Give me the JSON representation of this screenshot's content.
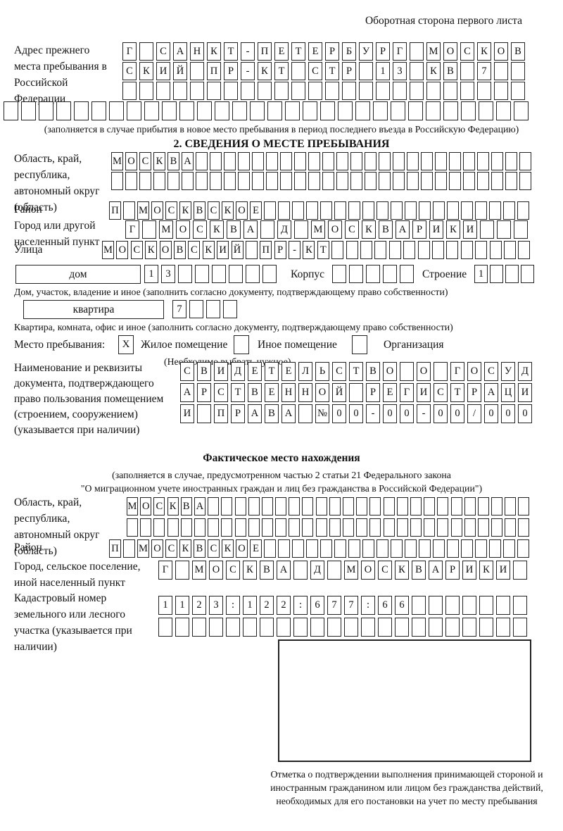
{
  "header": {
    "note": "Оборотная сторона первого листа"
  },
  "prev_address": {
    "label": "Адрес прежнего места пребывания в Российской Федерации",
    "row1": "Г САНКТ-ПЕТЕРБУРГ МОСКОВ",
    "row2": "СКИЙ ПР-КТ СТР 13 КВ 7",
    "row3": "",
    "row4": "",
    "note": "(заполняется в случае прибытия в новое место пребывания в период последнего въезда в Российскую Федерацию)"
  },
  "section2": {
    "title": "2. СВЕДЕНИЯ О МЕСТЕ ПРЕБЫВАНИЯ",
    "oblast": {
      "label": "Область, край, республика, автономный округ (область)",
      "row1": "МОСКВА",
      "row2": ""
    },
    "raion": {
      "label": "Район",
      "row": "П МОСКВСКОЕ"
    },
    "gorod": {
      "label": "Город или другой населенный пункт",
      "row": "Г МОСКВА Д МОСКВАРИКИ"
    },
    "ulitsa": {
      "label": "Улица",
      "row": "МОСКОВСКИЙ ПР-КТ"
    },
    "dom": {
      "box_label": "дом",
      "cells": "13",
      "korpus_label": "Корпус",
      "korpus_cells": "",
      "stroenie_label": "Строение",
      "stroenie_cells": "1",
      "note": "Дом, участок, владение и иное (заполнить согласно документу, подтверждающему право собственности)"
    },
    "kvartira": {
      "box_label": "квартира",
      "cells": "7",
      "note": "Квартира, комната, офис и иное (заполнить согласно документу, подтверждающему право собственности)"
    },
    "mesto": {
      "label": "Место пребывания:",
      "zhiloe_mark": "X",
      "zhiloe_label": "Жилое помещение",
      "inoe_mark": "",
      "inoe_label": "Иное помещение",
      "org_mark": "",
      "org_label": "Организация",
      "note": "(Необходимо выбрать нужное)"
    },
    "document": {
      "label": "Наименование и реквизиты документа, подтверждающего право пользования помещением (строением, сооружением) (указывается при наличии)",
      "row1": "СВИДЕТЕЛЬСТВО О ГОСУД",
      "row2": "АРСТВЕННОЙ РЕГИСТРАЦИ",
      "row3": "И ПРАВА №00-00-00/000"
    }
  },
  "factual": {
    "title": "Фактическое место нахождения",
    "note1": "(заполняется в случае, предусмотренном частью 2 статьи 21 Федерального закона",
    "note2": "\"О миграционном учете иностранных граждан и лиц без гражданства в Российской Федерации\")",
    "oblast": {
      "label": "Область, край, республика, автономный округ (область)",
      "row1": "МОСКВА",
      "row2": ""
    },
    "raion": {
      "label": "Район",
      "row": "П МОСКВСКОЕ"
    },
    "gorod": {
      "label": "Город, сельское поселение, иной населенный пункт",
      "row": "Г МОСКВА Д МОСКВАРИКИ"
    },
    "kadastr": {
      "label": "Кадастровый номер земельного или лесного участка (указывается при наличии)",
      "row1": "1123:122:677:66",
      "row2": ""
    },
    "stamp_note": "Отметка о подтверждении выполнения принимающей стороной и иностранным гражданином или лицом без гражданства действий, необходимых для его постановки на учет по месту пребывания"
  }
}
